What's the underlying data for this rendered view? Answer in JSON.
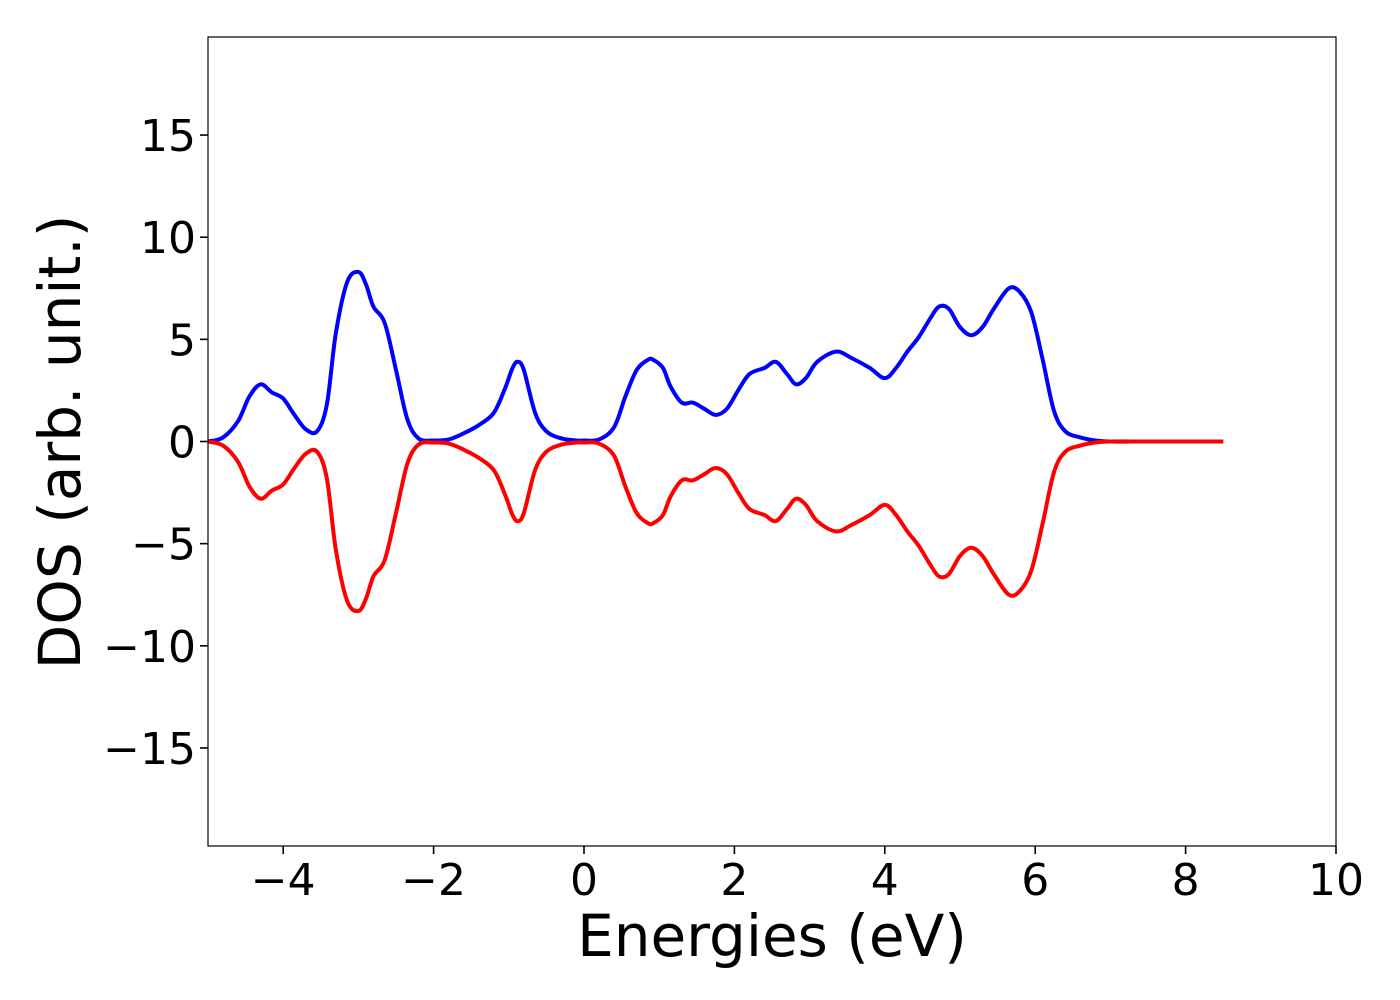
{
  "chart_data": {
    "type": "line",
    "title": "",
    "xlabel": "Energies (eV)",
    "ylabel": "DOS (arb. unit.)",
    "xlim": [
      -5,
      10
    ],
    "ylim": [
      -19.8,
      19.8
    ],
    "xticks": [
      -4,
      -2,
      0,
      2,
      4,
      6,
      8,
      10
    ],
    "yticks": [
      -15,
      -10,
      -5,
      0,
      5,
      10,
      15
    ],
    "xtick_labels": [
      "−4",
      "−2",
      "0",
      "2",
      "4",
      "6",
      "8",
      "10"
    ],
    "ytick_labels": [
      "−15",
      "−10",
      "−5",
      "0",
      "5",
      "10",
      "15"
    ],
    "grid": false,
    "legend": "none",
    "series": [
      {
        "color": "#0000ff",
        "x": [
          -5.0,
          -4.8,
          -4.6,
          -4.45,
          -4.3,
          -4.15,
          -4.0,
          -3.85,
          -3.7,
          -3.55,
          -3.42,
          -3.3,
          -3.15,
          -3.0,
          -2.9,
          -2.8,
          -2.65,
          -2.5,
          -2.35,
          -2.2,
          -2.0,
          -1.8,
          -1.6,
          -1.4,
          -1.2,
          -1.05,
          -0.95,
          -0.88,
          -0.8,
          -0.65,
          -0.5,
          -0.3,
          -0.1,
          0.0,
          0.2,
          0.4,
          0.55,
          0.7,
          0.85,
          0.92,
          1.05,
          1.15,
          1.3,
          1.45,
          1.6,
          1.75,
          1.9,
          2.05,
          2.2,
          2.4,
          2.55,
          2.7,
          2.82,
          2.95,
          3.1,
          3.35,
          3.55,
          3.8,
          4.0,
          4.15,
          4.3,
          4.45,
          4.6,
          4.72,
          4.85,
          5.0,
          5.15,
          5.3,
          5.45,
          5.65,
          5.8,
          5.95,
          6.1,
          6.25,
          6.4,
          6.6,
          6.8,
          7.0,
          7.5,
          8.0,
          8.5
        ],
        "y": [
          0.0,
          0.2,
          1.0,
          2.2,
          2.8,
          2.4,
          2.1,
          1.3,
          0.6,
          0.5,
          1.8,
          5.3,
          7.8,
          8.3,
          7.7,
          6.6,
          5.8,
          3.5,
          1.1,
          0.15,
          0.05,
          0.1,
          0.4,
          0.8,
          1.4,
          2.6,
          3.6,
          3.9,
          3.5,
          1.4,
          0.5,
          0.15,
          0.05,
          0.05,
          0.1,
          0.7,
          2.2,
          3.5,
          4.0,
          4.0,
          3.6,
          2.7,
          1.9,
          1.9,
          1.6,
          1.3,
          1.6,
          2.5,
          3.3,
          3.6,
          3.9,
          3.3,
          2.8,
          3.1,
          3.9,
          4.4,
          4.1,
          3.6,
          3.1,
          3.6,
          4.4,
          5.1,
          6.0,
          6.6,
          6.5,
          5.6,
          5.2,
          5.6,
          6.5,
          7.5,
          7.3,
          6.3,
          4.0,
          1.5,
          0.5,
          0.2,
          0.05,
          0.0,
          0.0,
          0.0,
          0.0
        ]
      },
      {
        "color": "#ff0000",
        "x": [
          -5.0,
          -4.8,
          -4.6,
          -4.45,
          -4.3,
          -4.15,
          -4.0,
          -3.85,
          -3.7,
          -3.55,
          -3.42,
          -3.3,
          -3.15,
          -3.0,
          -2.9,
          -2.8,
          -2.65,
          -2.5,
          -2.35,
          -2.2,
          -2.0,
          -1.8,
          -1.6,
          -1.4,
          -1.2,
          -1.05,
          -0.95,
          -0.88,
          -0.8,
          -0.65,
          -0.5,
          -0.3,
          -0.1,
          0.0,
          0.2,
          0.4,
          0.55,
          0.7,
          0.85,
          0.92,
          1.05,
          1.15,
          1.3,
          1.45,
          1.6,
          1.75,
          1.9,
          2.05,
          2.2,
          2.4,
          2.55,
          2.7,
          2.82,
          2.95,
          3.1,
          3.35,
          3.55,
          3.8,
          4.0,
          4.15,
          4.3,
          4.45,
          4.6,
          4.72,
          4.85,
          5.0,
          5.15,
          5.3,
          5.45,
          5.65,
          5.8,
          5.95,
          6.1,
          6.25,
          6.4,
          6.6,
          6.8,
          7.0,
          7.5,
          8.0,
          8.5
        ],
        "y": [
          0.0,
          -0.2,
          -1.0,
          -2.2,
          -2.8,
          -2.4,
          -2.1,
          -1.3,
          -0.6,
          -0.5,
          -1.8,
          -5.3,
          -7.8,
          -8.3,
          -7.7,
          -6.6,
          -5.8,
          -3.5,
          -1.1,
          -0.15,
          -0.05,
          -0.1,
          -0.4,
          -0.8,
          -1.4,
          -2.6,
          -3.6,
          -3.9,
          -3.5,
          -1.4,
          -0.5,
          -0.15,
          -0.05,
          -0.05,
          -0.1,
          -0.7,
          -2.2,
          -3.5,
          -4.0,
          -4.0,
          -3.6,
          -2.7,
          -1.9,
          -1.9,
          -1.6,
          -1.3,
          -1.6,
          -2.5,
          -3.3,
          -3.6,
          -3.9,
          -3.3,
          -2.8,
          -3.1,
          -3.9,
          -4.4,
          -4.1,
          -3.6,
          -3.1,
          -3.6,
          -4.4,
          -5.1,
          -6.0,
          -6.6,
          -6.5,
          -5.6,
          -5.2,
          -5.6,
          -6.5,
          -7.5,
          -7.3,
          -6.3,
          -4.0,
          -1.5,
          -0.5,
          -0.2,
          -0.05,
          0.0,
          0.0,
          0.0,
          0.0
        ]
      }
    ]
  }
}
